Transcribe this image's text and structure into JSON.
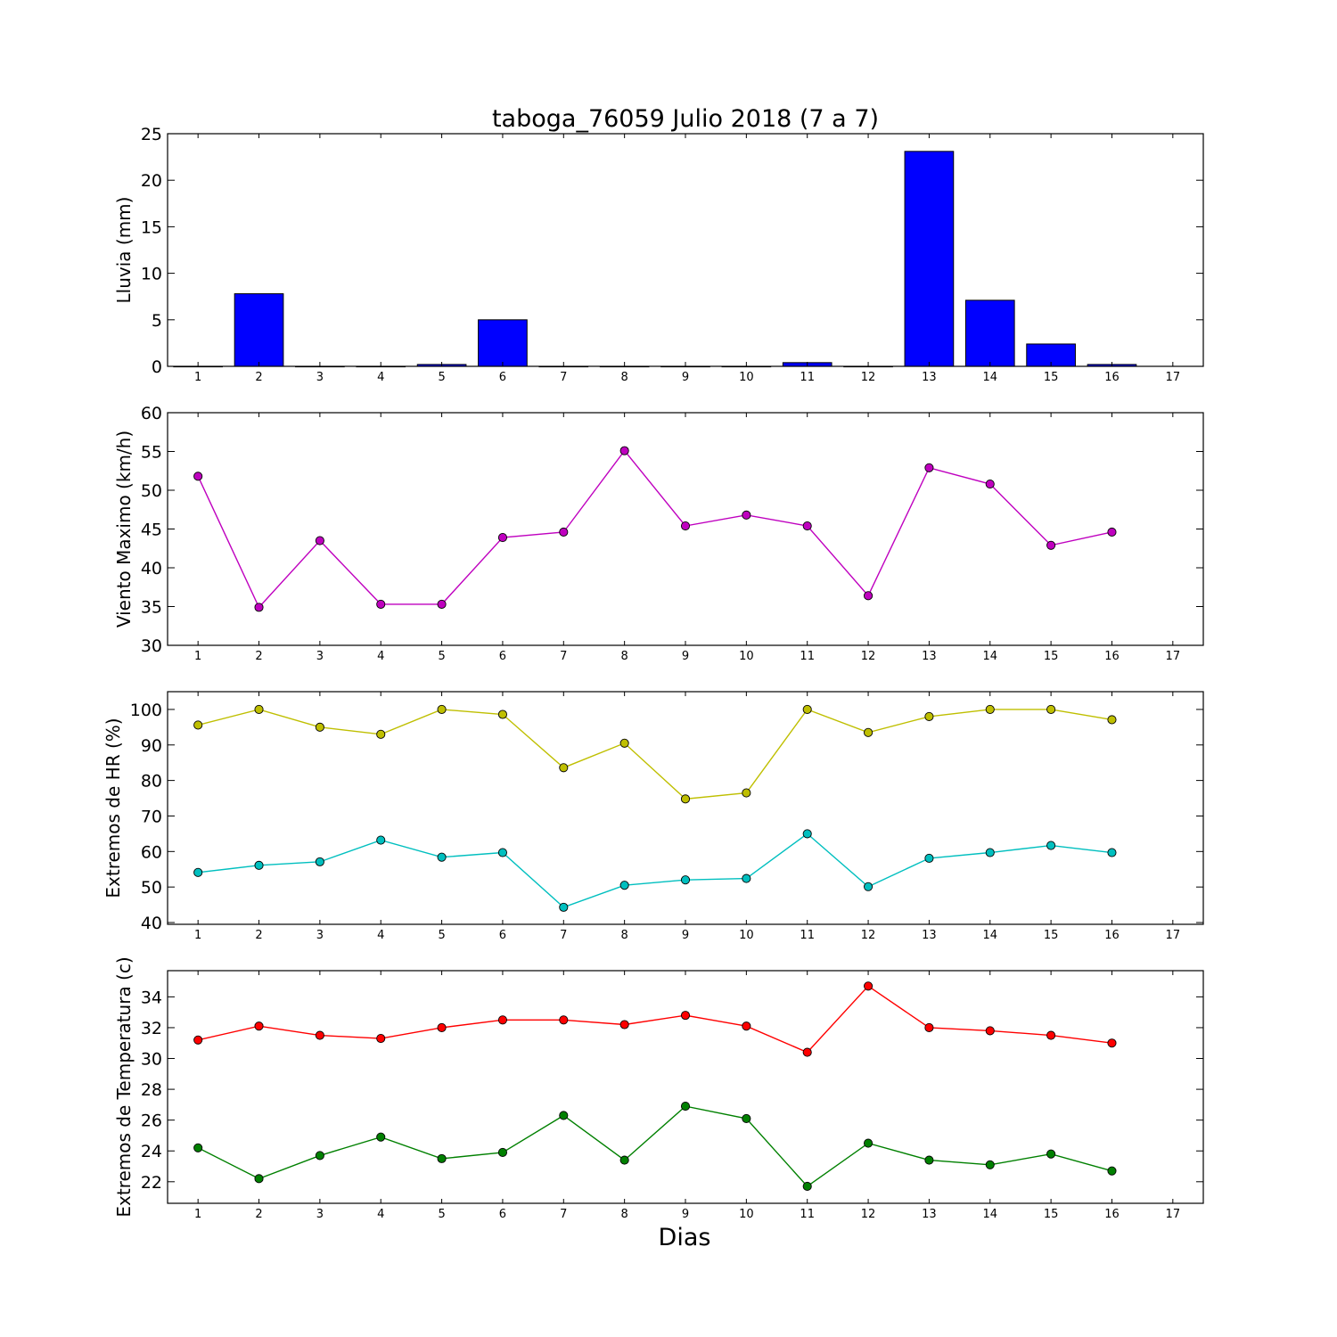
{
  "figure": {
    "title": "taboga_76059 Julio 2018  (7 a 7)",
    "xlabel": "Dias"
  },
  "chart_data": [
    {
      "type": "bar",
      "ylabel": "Lluvia (mm)",
      "ylim": [
        0,
        25
      ],
      "yticks": [
        0,
        5,
        10,
        15,
        20,
        25
      ],
      "xlim": [
        0.5,
        17.5
      ],
      "xticks": [
        1,
        2,
        3,
        4,
        5,
        6,
        7,
        8,
        9,
        10,
        11,
        12,
        13,
        14,
        15,
        16,
        17
      ],
      "categories": [
        1,
        2,
        3,
        4,
        5,
        6,
        7,
        8,
        9,
        10,
        11,
        12,
        13,
        14,
        15,
        16
      ],
      "series": [
        {
          "color": "#0000ff",
          "values": [
            0,
            7.8,
            0,
            0,
            0.2,
            5.0,
            0,
            0,
            0,
            0,
            0.4,
            0,
            23.1,
            7.1,
            2.4,
            0.2
          ]
        }
      ]
    },
    {
      "type": "line",
      "ylabel": "Viento Maximo (km/h)",
      "ylim": [
        30,
        60
      ],
      "yticks": [
        30,
        35,
        40,
        45,
        50,
        55,
        60
      ],
      "xlim": [
        0.5,
        17.5
      ],
      "xticks": [
        1,
        2,
        3,
        4,
        5,
        6,
        7,
        8,
        9,
        10,
        11,
        12,
        13,
        14,
        15,
        16,
        17
      ],
      "x": [
        1,
        2,
        3,
        4,
        5,
        6,
        7,
        8,
        9,
        10,
        11,
        12,
        13,
        14,
        15,
        16
      ],
      "series": [
        {
          "color": "#bf00bf",
          "values": [
            51.8,
            34.9,
            43.5,
            35.3,
            35.3,
            43.9,
            44.6,
            55.1,
            45.4,
            46.8,
            45.4,
            36.4,
            52.9,
            50.8,
            42.9,
            44.6
          ]
        }
      ]
    },
    {
      "type": "line",
      "ylabel": "Extremos de HR (%)",
      "ylim": [
        39.5,
        105
      ],
      "yticks": [
        40,
        50,
        60,
        70,
        80,
        90,
        100
      ],
      "xlim": [
        0.5,
        17.5
      ],
      "xticks": [
        1,
        2,
        3,
        4,
        5,
        6,
        7,
        8,
        9,
        10,
        11,
        12,
        13,
        14,
        15,
        16,
        17
      ],
      "x": [
        1,
        2,
        3,
        4,
        5,
        6,
        7,
        8,
        9,
        10,
        11,
        12,
        13,
        14,
        15,
        16
      ],
      "series": [
        {
          "color": "#bfbf00",
          "values": [
            95.6,
            100,
            95,
            93,
            100,
            98.6,
            83.6,
            90.5,
            74.8,
            76.5,
            100,
            93.5,
            98,
            100,
            100,
            97.1
          ]
        },
        {
          "color": "#00bfbf",
          "values": [
            54.1,
            56.1,
            57.1,
            63.2,
            58.4,
            59.7,
            44.3,
            50.5,
            52,
            52.4,
            65,
            50.1,
            58.1,
            59.7,
            61.7,
            59.7
          ]
        }
      ]
    },
    {
      "type": "line",
      "ylabel": "Extremos de Temperatura (c)",
      "ylim": [
        20.6,
        35.7
      ],
      "yticks": [
        22,
        24,
        26,
        28,
        30,
        32,
        34
      ],
      "xlim": [
        0.5,
        17.5
      ],
      "xticks": [
        1,
        2,
        3,
        4,
        5,
        6,
        7,
        8,
        9,
        10,
        11,
        12,
        13,
        14,
        15,
        16,
        17
      ],
      "x": [
        1,
        2,
        3,
        4,
        5,
        6,
        7,
        8,
        9,
        10,
        11,
        12,
        13,
        14,
        15,
        16
      ],
      "series": [
        {
          "color": "#ff0000",
          "values": [
            31.2,
            32.1,
            31.5,
            31.3,
            32,
            32.5,
            32.5,
            32.2,
            32.8,
            32.1,
            30.4,
            34.7,
            32,
            31.8,
            31.5,
            31
          ]
        },
        {
          "color": "#008000",
          "values": [
            24.2,
            22.2,
            23.7,
            24.9,
            23.5,
            23.9,
            26.3,
            23.4,
            26.9,
            26.1,
            21.7,
            24.5,
            23.4,
            23.1,
            23.8,
            22.7
          ]
        }
      ]
    }
  ]
}
